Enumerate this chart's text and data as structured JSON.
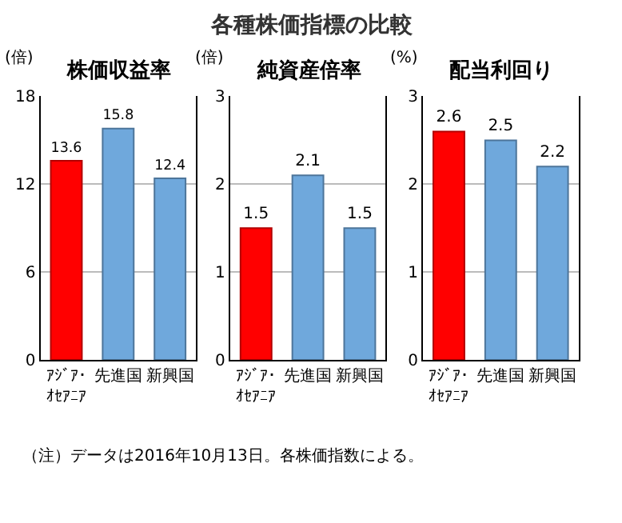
{
  "chart_data": [
    {
      "type": "bar",
      "title": "株価収益率",
      "ylabel": "(倍)",
      "categories": [
        "ｱｼﾞｱ･ｵｾｱﾆｱ",
        "先進国",
        "新興国"
      ],
      "values": [
        13.6,
        15.8,
        12.4
      ],
      "colors": [
        "#ff0000",
        "#6fa8dc",
        "#6fa8dc"
      ],
      "ylim": [
        0,
        18
      ],
      "yticks": [
        0,
        6,
        12,
        18
      ],
      "grid": "y",
      "data_labels": true,
      "annotations": [
        "各種株価指標の比較",
        "（注）データは2016年10月13日。各株価指数による。"
      ]
    },
    {
      "type": "bar",
      "title": "純資産倍率",
      "ylabel": "(倍)",
      "categories": [
        "ｱｼﾞｱ･ｵｾｱﾆｱ",
        "先進国",
        "新興国"
      ],
      "values": [
        1.5,
        2.1,
        1.5
      ],
      "colors": [
        "#ff0000",
        "#6fa8dc",
        "#6fa8dc"
      ],
      "ylim": [
        0,
        3
      ],
      "yticks": [
        0,
        1,
        2,
        3
      ],
      "grid": "y",
      "data_labels": true
    },
    {
      "type": "bar",
      "title": "配当利回り",
      "ylabel": "(%)",
      "categories": [
        "ｱｼﾞｱ･ｵｾｱﾆｱ",
        "先進国",
        "新興国"
      ],
      "values": [
        2.6,
        2.5,
        2.2
      ],
      "colors": [
        "#ff0000",
        "#6fa8dc",
        "#6fa8dc"
      ],
      "ylim": [
        0,
        3
      ],
      "yticks": [
        0,
        1,
        2,
        3
      ],
      "grid": "y",
      "data_labels": true
    }
  ]
}
